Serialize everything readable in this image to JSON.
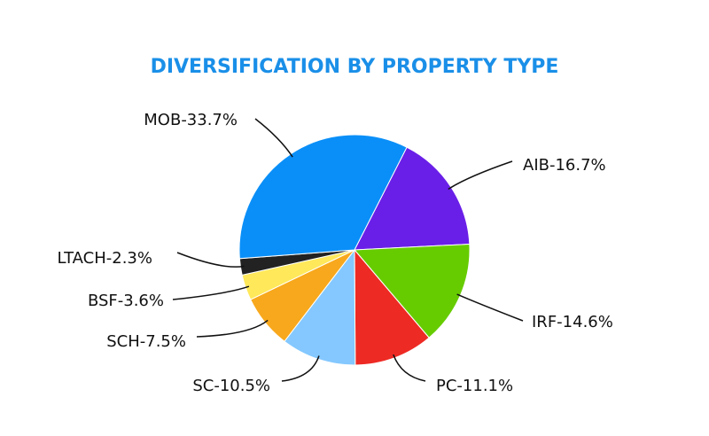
{
  "chart_data": {
    "type": "pie",
    "title": "DIVERSIFICATION BY PROPERTY TYPE",
    "values": [
      16.7,
      14.6,
      11.1,
      10.5,
      7.5,
      3.6,
      2.3,
      33.7
    ],
    "value_labels": [
      "AIB-16.7%",
      "IRF-14.6%",
      "PC-11.1%",
      "SC-10.5%",
      "SCH-7.5%",
      "BSF-3.6%",
      "LTACH-2.3%",
      "MOB-33.7%"
    ],
    "colors": [
      "#6a1fe8",
      "#66cc00",
      "#ee2a24",
      "#84c8ff",
      "#f8a81c",
      "#ffe85a",
      "#222222",
      "#0a8ff8"
    ]
  }
}
